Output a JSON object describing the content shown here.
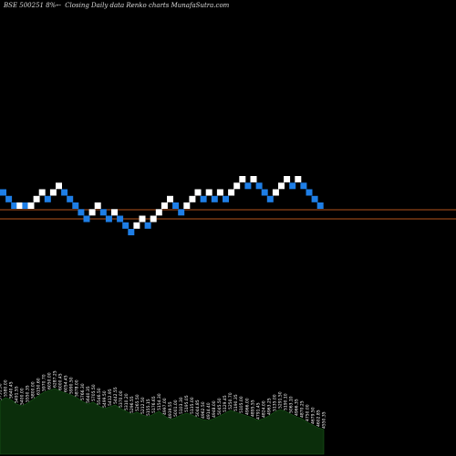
{
  "header": {
    "symbol": "BSE 500251 8%",
    "arrow": "←",
    "chart_label": "Closing Daily data  Renko  charts MunafaSutra.com"
  },
  "colors": {
    "background": "#000000",
    "up_brick": "#ffffff",
    "down_brick": "#1e7ee6",
    "reference_line": "#b5531c",
    "price_area": "#0b2e0b",
    "price_area_edge": "#1a5c1a",
    "price_label": "#ffffff"
  },
  "chart_data": {
    "type": "renko",
    "reference_levels": [
      88.5,
      100
    ],
    "brick_levels": [
      {
        "level": 25,
        "direction": "down"
      },
      {
        "level": 24,
        "direction": "down"
      },
      {
        "level": 23,
        "direction": "down"
      },
      {
        "level": 23,
        "direction": "up"
      },
      {
        "level": 23,
        "direction": "down"
      },
      {
        "level": 23,
        "direction": "up"
      },
      {
        "level": 24,
        "direction": "up"
      },
      {
        "level": 25,
        "direction": "up"
      },
      {
        "level": 24,
        "direction": "down"
      },
      {
        "level": 25,
        "direction": "up"
      },
      {
        "level": 26,
        "direction": "up"
      },
      {
        "level": 25,
        "direction": "down"
      },
      {
        "level": 24,
        "direction": "down"
      },
      {
        "level": 23,
        "direction": "down"
      },
      {
        "level": 22,
        "direction": "down"
      },
      {
        "level": 21,
        "direction": "down"
      },
      {
        "level": 22,
        "direction": "up"
      },
      {
        "level": 23,
        "direction": "up"
      },
      {
        "level": 22,
        "direction": "down"
      },
      {
        "level": 21,
        "direction": "down"
      },
      {
        "level": 22,
        "direction": "up"
      },
      {
        "level": 21,
        "direction": "down"
      },
      {
        "level": 20,
        "direction": "down"
      },
      {
        "level": 19,
        "direction": "down"
      },
      {
        "level": 20,
        "direction": "up"
      },
      {
        "level": 21,
        "direction": "up"
      },
      {
        "level": 20,
        "direction": "down"
      },
      {
        "level": 21,
        "direction": "up"
      },
      {
        "level": 22,
        "direction": "up"
      },
      {
        "level": 23,
        "direction": "up"
      },
      {
        "level": 24,
        "direction": "up"
      },
      {
        "level": 23,
        "direction": "down"
      },
      {
        "level": 22,
        "direction": "down"
      },
      {
        "level": 23,
        "direction": "up"
      },
      {
        "level": 24,
        "direction": "up"
      },
      {
        "level": 25,
        "direction": "up"
      },
      {
        "level": 24,
        "direction": "down"
      },
      {
        "level": 25,
        "direction": "up"
      },
      {
        "level": 24,
        "direction": "down"
      },
      {
        "level": 25,
        "direction": "up"
      },
      {
        "level": 24,
        "direction": "down"
      },
      {
        "level": 25,
        "direction": "up"
      },
      {
        "level": 26,
        "direction": "up"
      },
      {
        "level": 27,
        "direction": "up"
      },
      {
        "level": 26,
        "direction": "down"
      },
      {
        "level": 27,
        "direction": "up"
      },
      {
        "level": 26,
        "direction": "down"
      },
      {
        "level": 25,
        "direction": "down"
      },
      {
        "level": 24,
        "direction": "down"
      },
      {
        "level": 25,
        "direction": "up"
      },
      {
        "level": 26,
        "direction": "up"
      },
      {
        "level": 27,
        "direction": "up"
      },
      {
        "level": 26,
        "direction": "down"
      },
      {
        "level": 27,
        "direction": "up"
      },
      {
        "level": 26,
        "direction": "down"
      },
      {
        "level": 25,
        "direction": "down"
      },
      {
        "level": 24,
        "direction": "down"
      },
      {
        "level": 23,
        "direction": "down"
      }
    ],
    "price_area": {
      "series": [
        58,
        62,
        60,
        55,
        53,
        56,
        60,
        64,
        68,
        70,
        72,
        69,
        67,
        65,
        62,
        58,
        55,
        57,
        53,
        50,
        52,
        54,
        50,
        47,
        44,
        46,
        43,
        41,
        44,
        47,
        42,
        38,
        40,
        43,
        45,
        43,
        40,
        38,
        37,
        39,
        42,
        45,
        48,
        46,
        44,
        42,
        40,
        37,
        39,
        42,
        46,
        49,
        47,
        44,
        41,
        39,
        35,
        32,
        29,
        27
      ],
      "labels": [
        "5751.50",
        "5580.00",
        "5640.45",
        "5491.55",
        "5400.00",
        "5550.35",
        "5800.00",
        "6150.60",
        "5970.70",
        "6050.00",
        "6287.25",
        "6000.45",
        "6054.45",
        "5990.50",
        "5878.00",
        "5766.30",
        "5640.35",
        "5705.50",
        "5546.50",
        "5499.50",
        "5412.95",
        "5442.55",
        "5370.00",
        "5310.20",
        "5296.55",
        "5265.50",
        "5212.50",
        "5155.15",
        "5176.65",
        "5154.30",
        "4997.00",
        "4939.55",
        "5001.00",
        "5103.30",
        "5195.05",
        "5135.00",
        "5044.85",
        "4962.50",
        "4914.40",
        "4948.00",
        "5045.50",
        "5129.45",
        "5250.70",
        "5190.35",
        "5105.00",
        "4966.00",
        "4895.55",
        "4791.45",
        "4824.00",
        "4963.25",
        "5135.00",
        "5291.50",
        "5190.10",
        "5063.10",
        "4966.35",
        "4870.25",
        "4750.00",
        "4679.50",
        "4602.85",
        "4550.35"
      ]
    }
  }
}
